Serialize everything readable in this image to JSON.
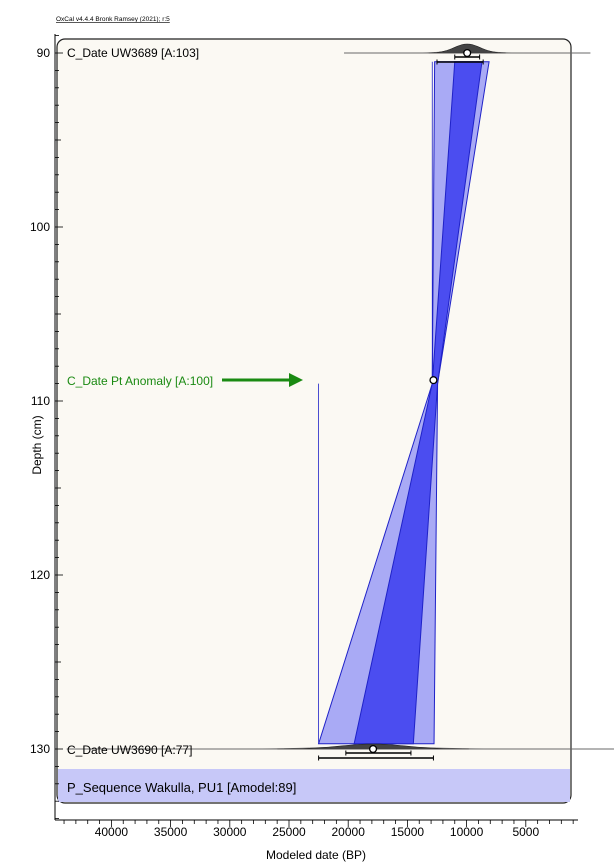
{
  "chart_data": {
    "type": "depth-age-model",
    "credit": "OxCal v4.4.4 Bronk Ramsey (2021); r:5",
    "xlabel": "Modeled date (BP)",
    "ylabel": "Depth (cm)",
    "xlim": [
      45000,
      0
    ],
    "ylim": [
      88,
      135
    ],
    "x_ticks": [
      40000,
      35000,
      30000,
      25000,
      20000,
      15000,
      10000,
      5000
    ],
    "x_tick_labels": [
      "40000",
      "35000",
      "30000",
      "25000",
      "20000",
      "15000",
      "10000",
      "5000"
    ],
    "y_ticks": [
      90,
      100,
      110,
      120,
      130
    ],
    "y_tick_labels": [
      "90",
      "100",
      "110",
      "120",
      "130"
    ],
    "sequence_label": "P_Sequence Wakulla, PU1 [Amodel:89]",
    "anomaly": {
      "label": "C_Date Pt Anomaly [A:100]",
      "depth": 108.8,
      "age": 12800,
      "color": "#1a8a12"
    },
    "dates": [
      {
        "label": "C_Date UW3689 [A:103]",
        "depth": 90,
        "median": 9950,
        "range_68": [
          11000,
          8900
        ],
        "range_95": [
          12500,
          8600
        ]
      },
      {
        "label": "C_Date UW3690 [A:77]",
        "depth": 130,
        "median": 17900,
        "range_68": [
          20200,
          14700
        ],
        "range_95": [
          22500,
          12800
        ]
      }
    ],
    "envelope_95": [
      {
        "depth": 90.5,
        "old": 12700,
        "young": 8100
      },
      {
        "depth": 109,
        "old": 12900,
        "young": 12450
      },
      {
        "depth": 129.7,
        "old": 22500,
        "young": 12750
      }
    ],
    "envelope_68": [
      {
        "depth": 90.5,
        "old": 11000,
        "young": 8700
      },
      {
        "depth": 109,
        "old": 12900,
        "young": 12450
      },
      {
        "depth": 129.7,
        "old": 19500,
        "young": 14500
      }
    ],
    "colors": {
      "envelope_95": "#a9aaf5",
      "envelope_68": "#4b4df0",
      "outline": "#1f22c8",
      "background": "#fbf9f3",
      "sequence_band": "#c7c8f8",
      "distribution": "#444444"
    }
  }
}
